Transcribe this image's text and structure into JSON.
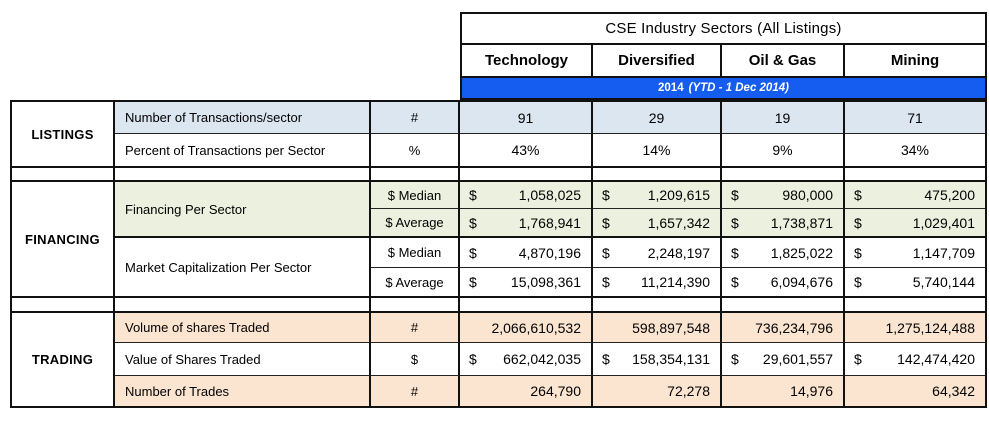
{
  "chart_data": {
    "type": "table",
    "title": "CSE Industry Sectors (All Listings)",
    "period": {
      "year": "2014",
      "note": "(YTD - 1 Dec 2014)"
    },
    "sector_columns": [
      "Technology",
      "Diversified",
      "Oil & Gas",
      "Mining"
    ],
    "sections": [
      {
        "name": "LISTINGS",
        "rows": [
          {
            "label": "Number of Transactions/sector",
            "unit": "#",
            "values": [
              "91",
              "29",
              "19",
              "71"
            ]
          },
          {
            "label": "Percent of Transactions per Sector",
            "unit": "%",
            "values": [
              "43%",
              "14%",
              "9%",
              "34%"
            ]
          }
        ]
      },
      {
        "name": "FINANCING",
        "groups": [
          {
            "label": "Financing Per Sector",
            "rows": [
              {
                "unit": "$ Median",
                "currency": "$",
                "values": [
                  "1,058,025",
                  "1,209,615",
                  "980,000",
                  "475,200"
                ]
              },
              {
                "unit": "$ Average",
                "currency": "$",
                "values": [
                  "1,768,941",
                  "1,657,342",
                  "1,738,871",
                  "1,029,401"
                ]
              }
            ]
          },
          {
            "label": "Market Capitalization Per Sector",
            "rows": [
              {
                "unit": "$ Median",
                "currency": "$",
                "values": [
                  "4,870,196",
                  "2,248,197",
                  "1,825,022",
                  "1,147,709"
                ]
              },
              {
                "unit": "$ Average",
                "currency": "$",
                "values": [
                  "15,098,361",
                  "11,214,390",
                  "6,094,676",
                  "5,740,144"
                ]
              }
            ]
          }
        ]
      },
      {
        "name": "TRADING",
        "rows": [
          {
            "label": "Volume of shares Traded",
            "unit": "#",
            "values": [
              "2,066,610,532",
              "598,897,548",
              "736,234,796",
              "1,275,124,488"
            ]
          },
          {
            "label": "Value of Shares Traded",
            "unit": "$",
            "currency": "$",
            "values": [
              "662,042,035",
              "158,354,131",
              "29,601,557",
              "142,474,420"
            ]
          },
          {
            "label": "Number of Trades",
            "unit": "#",
            "values": [
              "264,790",
              "72,278",
              "14,976",
              "64,342"
            ]
          }
        ]
      }
    ]
  },
  "colors": {
    "header_bar": "#155CF0",
    "listings_shade": "#DCE6F1",
    "financing_shade": "#EBF1DE",
    "trading_shade": "#FBE5D0",
    "border": "#111111"
  }
}
